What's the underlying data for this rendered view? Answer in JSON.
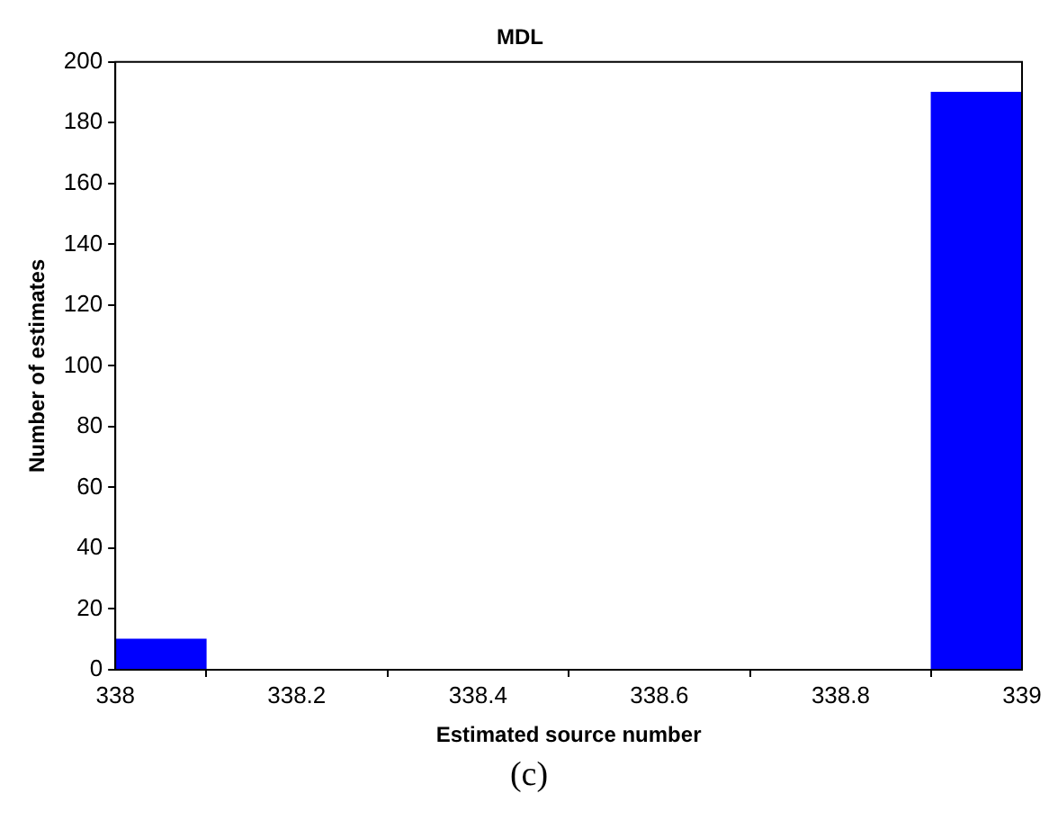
{
  "chart_data": {
    "type": "histogram",
    "title": "MDL",
    "xlabel": "Estimated source number",
    "ylabel": "Number of estimates",
    "bins": [
      338,
      338.1,
      338.2,
      338.3,
      338.4,
      338.5,
      338.6,
      338.7,
      338.8,
      338.9,
      339
    ],
    "values": [
      10,
      0,
      0,
      0,
      0,
      0,
      0,
      0,
      0,
      190
    ],
    "color": "#0000ff",
    "xlim": [
      338,
      339
    ],
    "xticks": [
      338,
      338.2,
      338.4,
      338.6,
      338.8,
      339
    ],
    "ylim": [
      0,
      200
    ],
    "yticks": [
      0,
      20,
      40,
      60,
      80,
      100,
      120,
      140,
      160,
      180,
      200
    ],
    "grid": false,
    "legend": false,
    "annotations": [
      "(c)"
    ]
  }
}
